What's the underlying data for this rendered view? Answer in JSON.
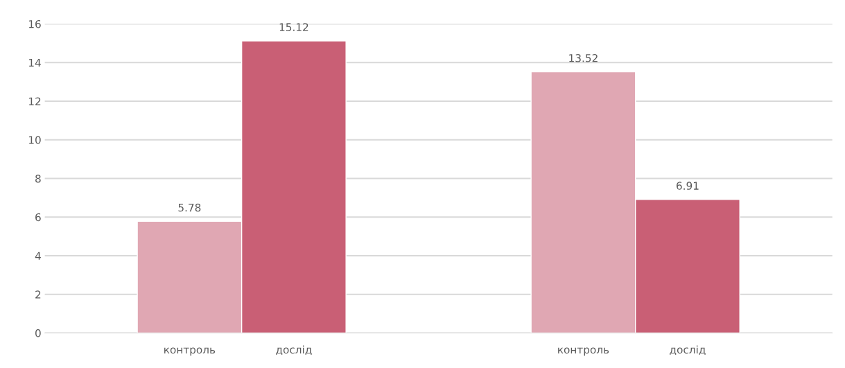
{
  "chart_data": {
    "type": "bar",
    "categories": [
      null,
      null
    ],
    "series": [
      {
        "name": "контроль",
        "color": "#e0a7b3",
        "values": [
          5.78,
          13.52
        ]
      },
      {
        "name": "дослід",
        "color": "#c95f75",
        "values": [
          15.12,
          6.91
        ]
      }
    ],
    "ylim": [
      0,
      16
    ],
    "yticks": [
      0,
      2,
      4,
      6,
      8,
      10,
      12,
      14,
      16
    ],
    "grid": "y",
    "data_labels": true
  }
}
